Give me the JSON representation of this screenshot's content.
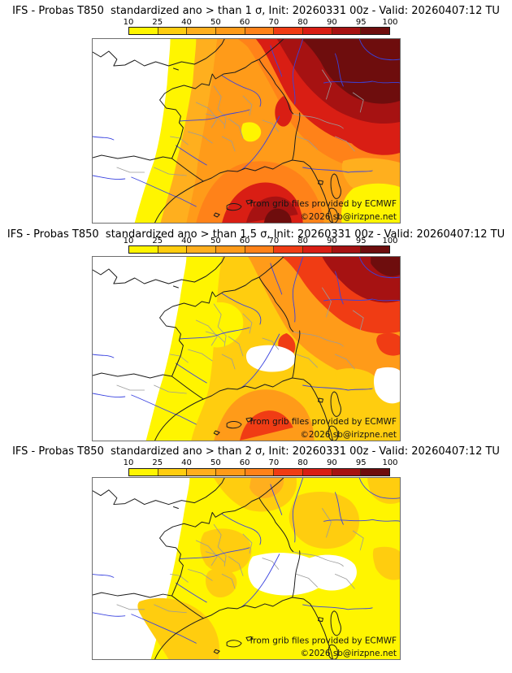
{
  "page": {
    "background": "#ffffff"
  },
  "colorbar": {
    "ticks": [
      "10",
      "25",
      "40",
      "50",
      "60",
      "70",
      "80",
      "90",
      "95",
      "100"
    ],
    "colors": [
      "#fff500",
      "#ffcd0f",
      "#ffaf1e",
      "#ff9b19",
      "#ff8219",
      "#f03c14",
      "#d91e14",
      "#a61212",
      "#6e0d0d"
    ]
  },
  "credits": {
    "line1": "from grib files provided by ECMWF",
    "line2": "©2026 sb@irizpne.net"
  },
  "panels": [
    {
      "title": "IFS - Probas T850  standardized ano > than 1 σ, Init: 20260331 00z - Valid: 20260407:12 TU",
      "model": "IFS",
      "variable": "Probas T850",
      "threshold": "> than 1 σ",
      "init": "20260331 00z",
      "valid": "20260407:12 TU"
    },
    {
      "title": "IFS - Probas T850  standardized ano > than 1.5 σ, Init: 20260331 00z - Valid: 20260407:12 TU",
      "model": "IFS",
      "variable": "Probas T850",
      "threshold": "> than 1.5 σ",
      "init": "20260331 00z",
      "valid": "20260407:12 TU"
    },
    {
      "title": "IFS - Probas T850  standardized ano > than 2 σ, Init: 20260331 00z - Valid: 20260407:12 TU",
      "model": "IFS",
      "variable": "Probas T850",
      "threshold": "> than 2 σ",
      "init": "20260331 00z",
      "valid": "20260407:12 TU"
    }
  ]
}
